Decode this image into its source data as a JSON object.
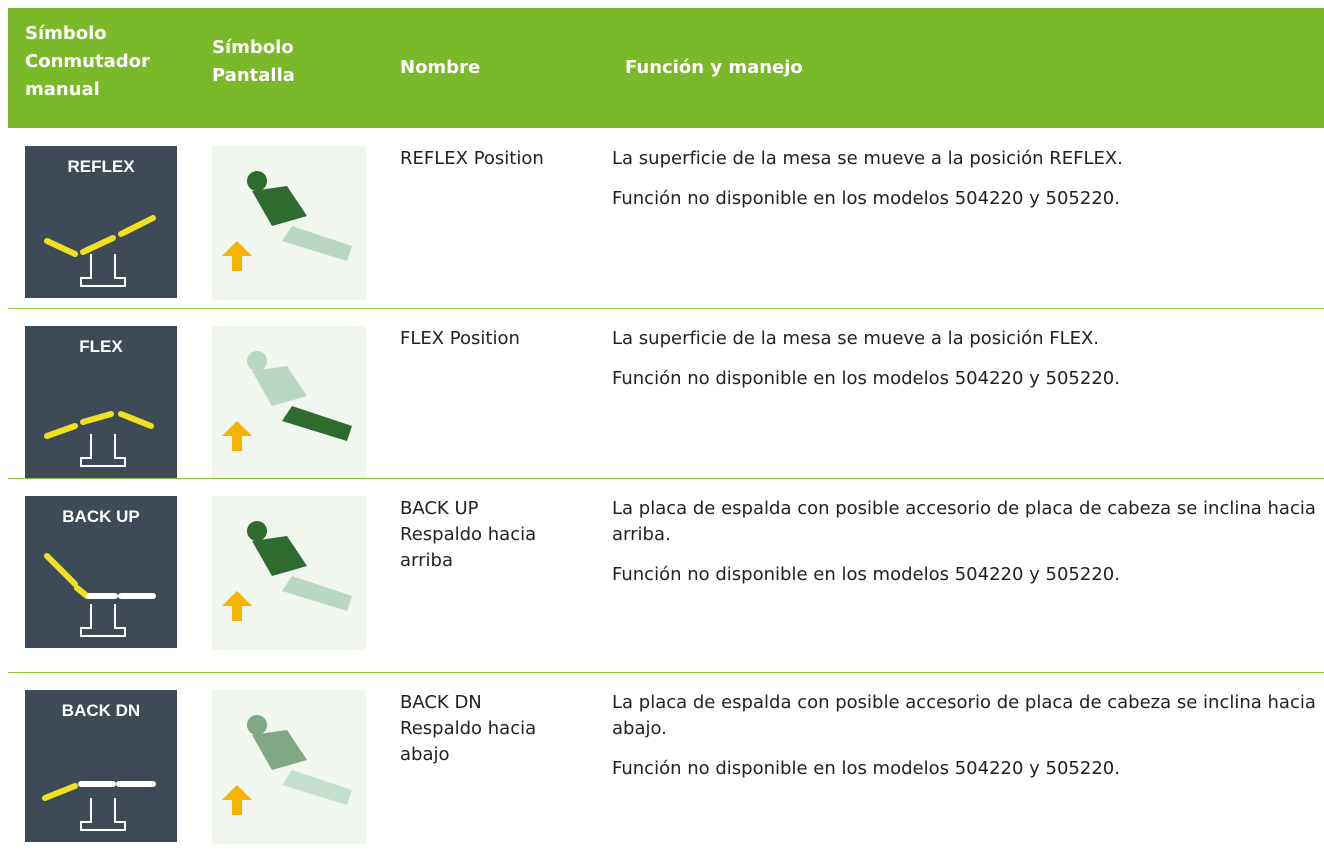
{
  "header": {
    "columns": [
      "Símbolo Conmutador manual",
      "Símbolo Pantalla",
      "Nombre",
      "Función y manejo"
    ]
  },
  "rows": [
    {
      "switch_label": "REFLEX",
      "name": [
        "REFLEX Position"
      ],
      "function": [
        "La superficie de la mesa se mueve a la posición REFLEX.",
        "Función no disponible en los modelos 504220 y 505220."
      ]
    },
    {
      "switch_label": "FLEX",
      "name": [
        "FLEX Position"
      ],
      "function": [
        "La superficie de la mesa se mueve a la posición FLEX.",
        "Función no disponible en los modelos 504220 y 505220."
      ]
    },
    {
      "switch_label": "BACK UP",
      "name": [
        "BACK UP",
        "Respaldo hacia arriba"
      ],
      "function": [
        "La placa de espalda con posible accesorio de placa de cabeza se inclina hacia arriba.",
        "Función no disponible en los modelos 504220 y 505220."
      ]
    },
    {
      "switch_label": "BACK DN",
      "name": [
        "BACK DN",
        "Respaldo hacia abajo"
      ],
      "function": [
        "La placa de espalda con posible accesorio de placa de cabeza se inclina hacia abajo.",
        "Función no disponible en los modelos 504220 y 505220."
      ]
    }
  ]
}
